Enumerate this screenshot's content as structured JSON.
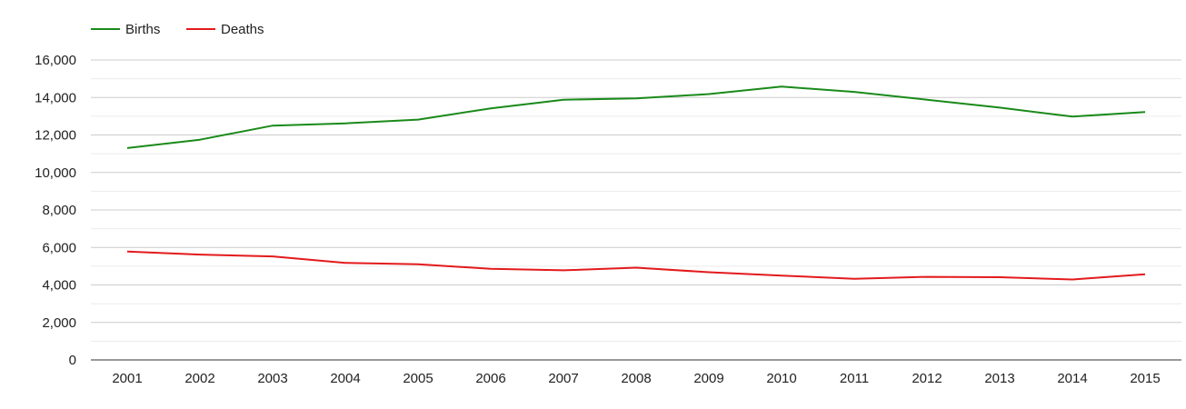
{
  "chart_data": {
    "type": "line",
    "title": "",
    "xlabel": "",
    "ylabel": "",
    "categories": [
      "2001",
      "2002",
      "2003",
      "2004",
      "2005",
      "2006",
      "2007",
      "2008",
      "2009",
      "2010",
      "2011",
      "2012",
      "2013",
      "2014",
      "2015"
    ],
    "series": [
      {
        "name": "Births",
        "color": "#1a8a1a",
        "values": [
          11300,
          11750,
          12500,
          12620,
          12820,
          13420,
          13880,
          13950,
          14180,
          14580,
          14300,
          13880,
          13460,
          12980,
          13220
        ]
      },
      {
        "name": "Deaths",
        "color": "#e31a1c",
        "values": [
          5780,
          5620,
          5520,
          5180,
          5100,
          4860,
          4780,
          4920,
          4680,
          4500,
          4330,
          4430,
          4410,
          4290,
          4570
        ]
      }
    ],
    "ylim": [
      0,
      16000
    ],
    "y_ticks": [
      0,
      2000,
      4000,
      6000,
      8000,
      10000,
      12000,
      14000,
      16000
    ],
    "y_tick_labels": [
      "0",
      "2,000",
      "4,000",
      "6,000",
      "8,000",
      "10,000",
      "12,000",
      "14,000",
      "16,000"
    ],
    "grid": true,
    "legend_position": "top-left",
    "gridline_color": "#cccccc",
    "minor_gridline_color": "#ebebeb",
    "axis_color": "#333333"
  }
}
